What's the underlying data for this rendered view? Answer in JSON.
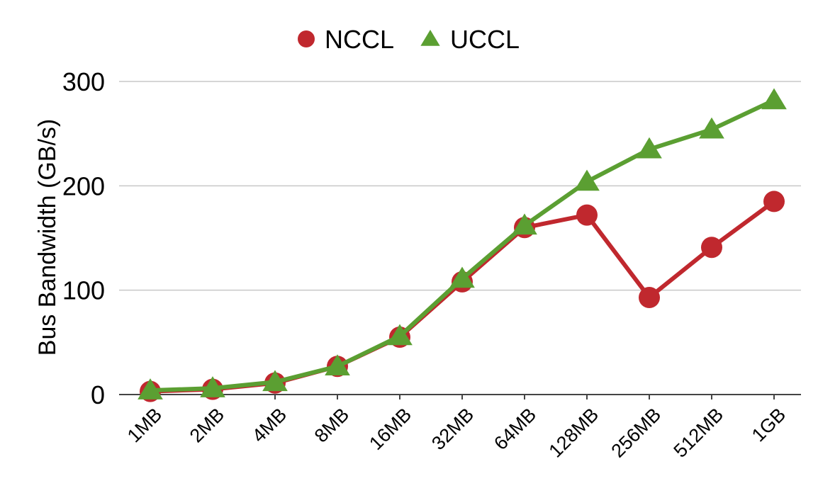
{
  "chart_data": {
    "type": "line",
    "title": "",
    "xlabel": "",
    "ylabel": "Bus Bandwidth (GB/s)",
    "categories": [
      "1MB",
      "2MB",
      "4MB",
      "8MB",
      "16MB",
      "32MB",
      "64MB",
      "128MB",
      "256MB",
      "512MB",
      "1GB"
    ],
    "ylim": [
      0,
      300
    ],
    "yticks": [
      "0",
      "100",
      "200",
      "300"
    ],
    "grid": true,
    "legend_position": "top-center",
    "series": [
      {
        "name": "NCCL",
        "marker": "circle",
        "color": "#c0282e",
        "values": [
          3,
          5,
          11,
          27,
          55,
          108,
          160,
          172,
          93,
          141,
          185
        ]
      },
      {
        "name": "UCCL",
        "marker": "triangle",
        "color": "#5b9f32",
        "values": [
          4,
          6,
          12,
          27,
          56,
          111,
          162,
          204,
          235,
          254,
          282
        ]
      }
    ]
  }
}
